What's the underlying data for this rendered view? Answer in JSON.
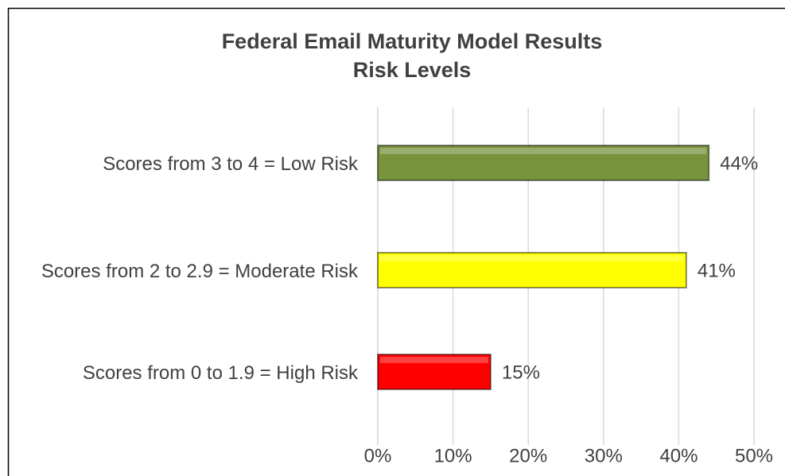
{
  "chart_data": {
    "type": "hbar",
    "title": [
      "Federal Email Maturity Model Results",
      "Risk Levels"
    ],
    "categories": [
      "Scores from 3 to 4 = Low Risk",
      "Scores from 2 to 2.9 = Moderate Risk",
      "Scores from 0 to 1.9 = High Risk"
    ],
    "values": [
      44,
      41,
      15
    ],
    "value_labels": [
      "44%",
      "41%",
      "15%"
    ],
    "colors": [
      "#77933c",
      "#ffff00",
      "#ff0000"
    ],
    "xlim": [
      0,
      50
    ],
    "xticks": [
      {
        "value": 0,
        "label": "0%"
      },
      {
        "value": 10,
        "label": "10%"
      },
      {
        "value": 20,
        "label": "20%"
      },
      {
        "value": 30,
        "label": "30%"
      },
      {
        "value": 40,
        "label": "40%"
      },
      {
        "value": 50,
        "label": "50%"
      }
    ],
    "grid": true
  }
}
